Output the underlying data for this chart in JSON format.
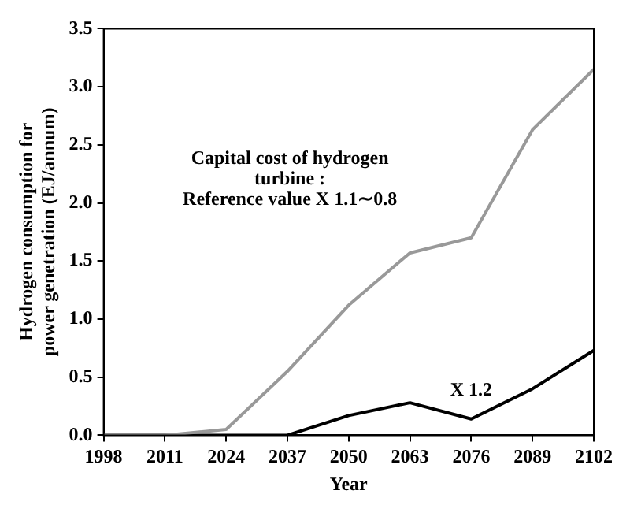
{
  "chart_data": {
    "type": "line",
    "xlabel": "Year",
    "ylabel": "Hydrogen consumption for\npower genetration (EJ/annum)",
    "categories": [
      "1998",
      "2011",
      "2024",
      "2037",
      "2050",
      "2063",
      "2076",
      "2089",
      "2102"
    ],
    "series": [
      {
        "color": "#999999",
        "values": [
          0,
          0,
          0.05,
          0.55,
          1.12,
          1.57,
          1.7,
          2.63,
          3.15
        ]
      },
      {
        "color": "#000000",
        "values": [
          0,
          0,
          0,
          0,
          0.17,
          0.28,
          0.14,
          0.4,
          0.73
        ]
      }
    ],
    "ylim": [
      0,
      3.5
    ],
    "yticks": [
      {
        "value": 0,
        "label": "0.0"
      },
      {
        "value": 0.5,
        "label": "0.5"
      },
      {
        "value": 1,
        "label": "1.0"
      },
      {
        "value": 1.5,
        "label": "1.5"
      },
      {
        "value": 2,
        "label": "2.0"
      },
      {
        "value": 2.5,
        "label": "2.5"
      },
      {
        "value": 3,
        "label": "3.0"
      },
      {
        "value": 3.5,
        "label": "3.5"
      }
    ],
    "annotations": [
      "Capital cost of hydrogen\nturbine :\nReference value X 1.1∼0.8",
      "X 1.2"
    ],
    "grid": false,
    "legend": false,
    "marker": "none",
    "line_style": "solid"
  }
}
